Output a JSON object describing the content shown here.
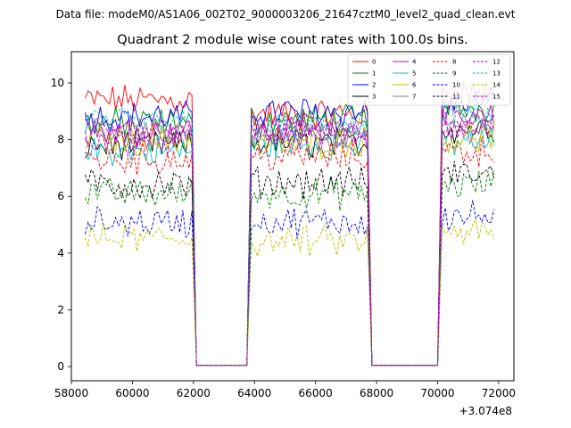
{
  "chart_data": {
    "type": "line",
    "suptitle": "Data file: modeM0/AS1A06_002T02_9000003206_21647cztM0_level2_quad_clean.evt",
    "title": "Quadrant 2 module wise count rates with 100.0s bins.",
    "xlabel": "",
    "ylabel": "",
    "x_offset_label": "+3.074e8",
    "xlim": [
      58000,
      72500
    ],
    "ylim": [
      -0.5,
      11.1
    ],
    "x_ticks": [
      58000,
      60000,
      62000,
      64000,
      66000,
      68000,
      70000,
      72000
    ],
    "x_tick_labels": [
      "58000",
      "60000",
      "62000",
      "64000",
      "66000",
      "68000",
      "70000",
      "72000"
    ],
    "y_ticks": [
      0,
      2,
      4,
      6,
      8,
      10
    ],
    "y_tick_labels": [
      "0",
      "2",
      "4",
      "6",
      "8",
      "10"
    ],
    "grid": false,
    "legend_position": "upper right",
    "bin_seconds": 100,
    "time_ranges": [
      [
        58450,
        61950
      ],
      [
        63900,
        67700
      ],
      [
        70150,
        71850
      ]
    ],
    "series": [
      {
        "name": "0",
        "color": "#ff0000",
        "dash": "solid",
        "levels": [
          9.4,
          8.9,
          9.7
        ]
      },
      {
        "name": "1",
        "color": "#008000",
        "dash": "solid",
        "levels": [
          8.6,
          8.7,
          9.1
        ]
      },
      {
        "name": "2",
        "color": "#0000ff",
        "dash": "solid",
        "levels": [
          8.8,
          9.0,
          9.3
        ]
      },
      {
        "name": "3",
        "color": "#000000",
        "dash": "solid",
        "levels": [
          7.8,
          7.9,
          8.4
        ]
      },
      {
        "name": "4",
        "color": "#bf00bf",
        "dash": "solid",
        "levels": [
          8.3,
          8.3,
          8.7
        ]
      },
      {
        "name": "5",
        "color": "#00bfbf",
        "dash": "solid",
        "levels": [
          7.6,
          7.8,
          7.9
        ]
      },
      {
        "name": "6",
        "color": "#bfbf00",
        "dash": "solid",
        "levels": [
          8.0,
          7.9,
          8.1
        ]
      },
      {
        "name": "7",
        "color": "#808080",
        "dash": "solid",
        "levels": [
          8.2,
          8.1,
          8.5
        ]
      },
      {
        "name": "8",
        "color": "#ff0000",
        "dash": "dashed",
        "levels": [
          7.3,
          7.4,
          7.6
        ]
      },
      {
        "name": "9",
        "color": "#008000",
        "dash": "dashed",
        "levels": [
          6.1,
          6.1,
          6.4
        ]
      },
      {
        "name": "10",
        "color": "#0000ff",
        "dash": "dashed",
        "levels": [
          5.1,
          5.1,
          5.3
        ]
      },
      {
        "name": "11",
        "color": "#000000",
        "dash": "dashed",
        "levels": [
          6.4,
          6.5,
          6.8
        ]
      },
      {
        "name": "12",
        "color": "#bf00bf",
        "dash": "dashed",
        "levels": [
          8.0,
          8.2,
          8.4
        ]
      },
      {
        "name": "13",
        "color": "#00bfbf",
        "dash": "dashed",
        "levels": [
          8.6,
          8.4,
          8.9
        ]
      },
      {
        "name": "14",
        "color": "#bfbf00",
        "dash": "dashed",
        "levels": [
          4.5,
          4.4,
          4.7
        ]
      },
      {
        "name": "15",
        "color": "#bf00bf",
        "dash": "dashed",
        "levels": [
          8.4,
          8.4,
          8.6
        ]
      }
    ]
  }
}
